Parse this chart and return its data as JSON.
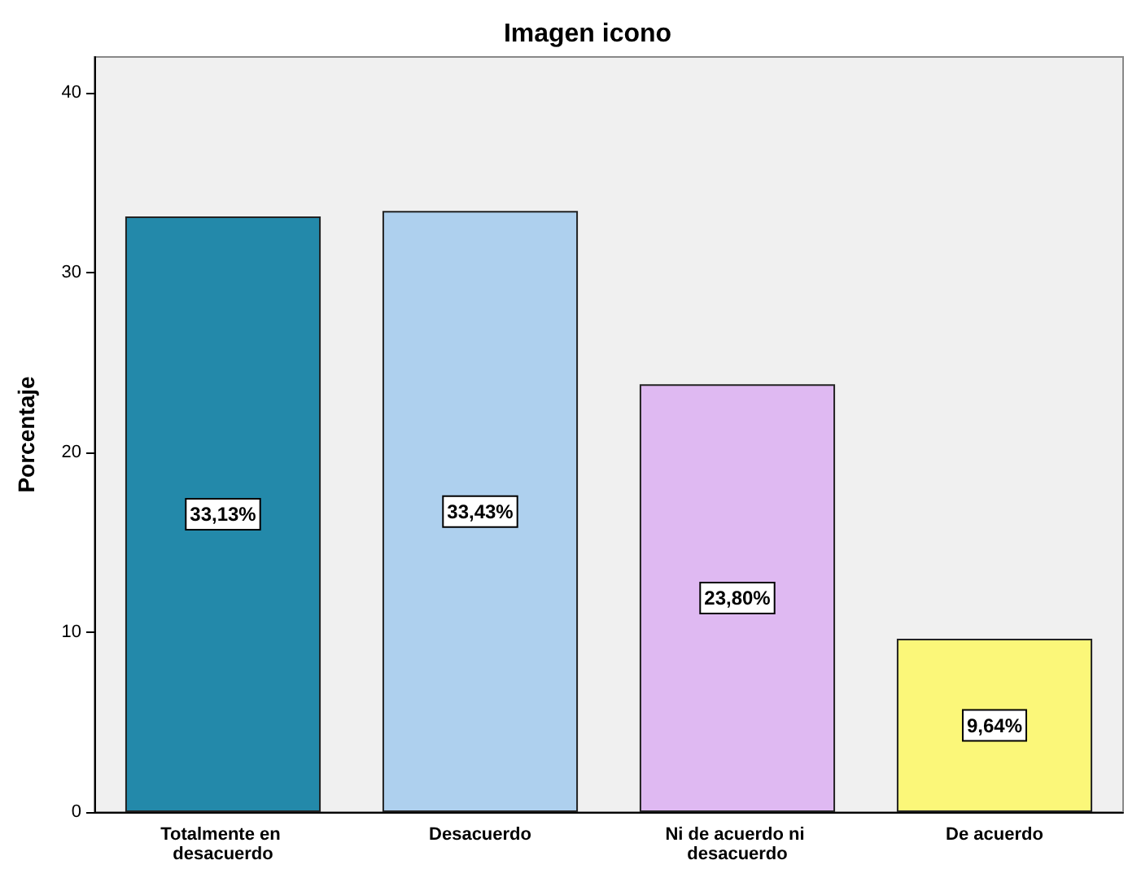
{
  "chart_data": {
    "type": "bar",
    "title": "Imagen icono",
    "ylabel": "Porcentaje",
    "categories": [
      "Totalmente en desacuerdo",
      "Desacuerdo",
      "Ni de acuerdo ni desacuerdo",
      "De acuerdo"
    ],
    "values": [
      33.13,
      33.43,
      23.8,
      9.64
    ],
    "colors": [
      "#2389aa",
      "#aed0ee",
      "#dfb9f2",
      "#fbf779"
    ],
    "value_labels": [
      "33,13%",
      "33,43%",
      "23,80%",
      "9,64%"
    ],
    "ylim": [
      0,
      42
    ],
    "yticks": [
      0,
      10,
      20,
      30,
      40
    ],
    "grid": false
  }
}
